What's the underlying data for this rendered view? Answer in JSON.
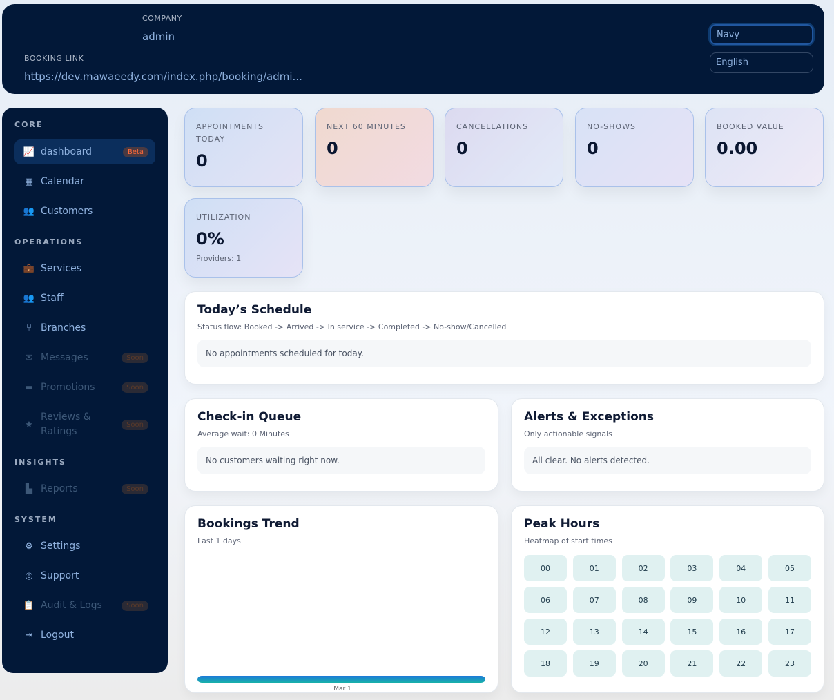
{
  "header": {
    "company_label": "COMPANY",
    "company": "admin",
    "booking_link_label": "BOOKING LINK",
    "booking_link": "https://dev.mawaeedy.com/index.php/booking/admi...",
    "theme": "Navy",
    "language": "English"
  },
  "sidebar": {
    "sections": [
      {
        "title": "CORE",
        "items": [
          {
            "label": "dashboard",
            "icon": "chart-line-icon",
            "badge": "Beta"
          },
          {
            "label": "Calendar",
            "icon": "calendar-icon"
          },
          {
            "label": "Customers",
            "icon": "users-icon"
          }
        ]
      },
      {
        "title": "OPERATIONS",
        "items": [
          {
            "label": "Services",
            "icon": "briefcase-clock-icon"
          },
          {
            "label": "Staff",
            "icon": "people-group-icon"
          },
          {
            "label": "Branches",
            "icon": "code-branch-icon"
          },
          {
            "label": "Messages",
            "icon": "envelope-icon",
            "badge": "Soon"
          },
          {
            "label": "Promotions",
            "icon": "ticket-icon",
            "badge": "Soon"
          },
          {
            "label": "Reviews & Ratings",
            "icon": "star-icon",
            "badge": "Soon"
          }
        ]
      },
      {
        "title": "INSIGHTS",
        "items": [
          {
            "label": "Reports",
            "icon": "chart-icon",
            "badge": "Soon"
          }
        ]
      },
      {
        "title": "SYSTEM",
        "items": [
          {
            "label": "Settings",
            "icon": "gear-icon"
          },
          {
            "label": "Support",
            "icon": "lifebuoy-icon"
          },
          {
            "label": "Audit & Logs",
            "icon": "clipboard-icon",
            "badge": "Soon"
          },
          {
            "label": "Logout",
            "icon": "logout-icon"
          }
        ]
      }
    ]
  },
  "kpis": [
    {
      "label": "APPOINTMENTS TODAY",
      "value": "0"
    },
    {
      "label": "NEXT 60 MINUTES",
      "value": "0"
    },
    {
      "label": "CANCELLATIONS",
      "value": "0"
    },
    {
      "label": "NO-SHOWS",
      "value": "0"
    },
    {
      "label": "BOOKED VALUE",
      "value": "0.00"
    },
    {
      "label": "UTILIZATION",
      "value": "0%",
      "sub": "Providers: 1"
    }
  ],
  "schedule": {
    "title": "Today’s Schedule",
    "sub": "Status flow: Booked -> Arrived -> In service -> Completed -> No-show/Cancelled",
    "empty": "No appointments scheduled for today."
  },
  "queue": {
    "title": "Check-in Queue",
    "sub": "Average wait: 0 Minutes",
    "empty": "No customers waiting right now."
  },
  "alerts": {
    "title": "Alerts & Exceptions",
    "sub": "Only actionable signals",
    "empty": "All clear. No alerts detected."
  },
  "trend": {
    "title": "Bookings Trend",
    "sub": "Last 1 days"
  },
  "chart_data": {
    "type": "bar",
    "categories": [
      "Mar 1"
    ],
    "values": [
      0
    ],
    "title": "Bookings Trend",
    "xlabel": "",
    "ylabel": ""
  },
  "peak": {
    "title": "Peak Hours",
    "sub": "Heatmap of start times",
    "hours": [
      "00",
      "01",
      "02",
      "03",
      "04",
      "05",
      "06",
      "07",
      "08",
      "09",
      "10",
      "11",
      "12",
      "13",
      "14",
      "15",
      "16",
      "17",
      "18",
      "19",
      "20",
      "21",
      "22",
      "23"
    ]
  }
}
